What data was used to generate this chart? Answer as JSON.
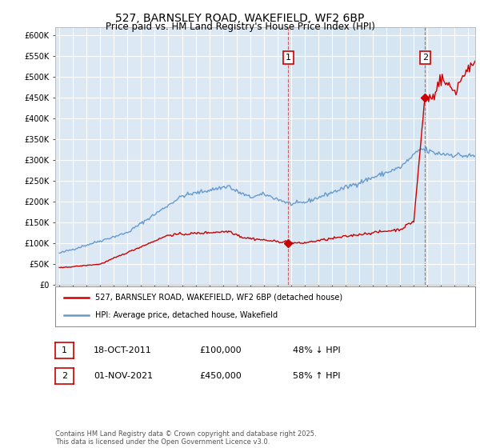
{
  "title1": "527, BARNSLEY ROAD, WAKEFIELD, WF2 6BP",
  "title2": "Price paid vs. HM Land Registry's House Price Index (HPI)",
  "background_color": "#dce9f5",
  "red_color": "#cc0000",
  "blue_color": "#6699cc",
  "ylim": [
    0,
    620000
  ],
  "yticks": [
    0,
    50000,
    100000,
    150000,
    200000,
    250000,
    300000,
    350000,
    400000,
    450000,
    500000,
    550000,
    600000
  ],
  "ytick_labels": [
    "£0",
    "£50K",
    "£100K",
    "£150K",
    "£200K",
    "£250K",
    "£300K",
    "£350K",
    "£400K",
    "£450K",
    "£500K",
    "£550K",
    "£600K"
  ],
  "point1_x": 2011.8,
  "point1_y": 100000,
  "point1_label": "1",
  "point1_date": "18-OCT-2011",
  "point1_price": "£100,000",
  "point1_hpi": "48% ↓ HPI",
  "point2_x": 2021.83,
  "point2_y": 450000,
  "point2_label": "2",
  "point2_date": "01-NOV-2021",
  "point2_price": "£450,000",
  "point2_hpi": "58% ↑ HPI",
  "legend_line1": "527, BARNSLEY ROAD, WAKEFIELD, WF2 6BP (detached house)",
  "legend_line2": "HPI: Average price, detached house, Wakefield",
  "footer": "Contains HM Land Registry data © Crown copyright and database right 2025.\nThis data is licensed under the Open Government Licence v3.0.",
  "vline1_x": 2011.8,
  "vline2_x": 2021.83,
  "xlim_min": 1994.7,
  "xlim_max": 2025.5
}
